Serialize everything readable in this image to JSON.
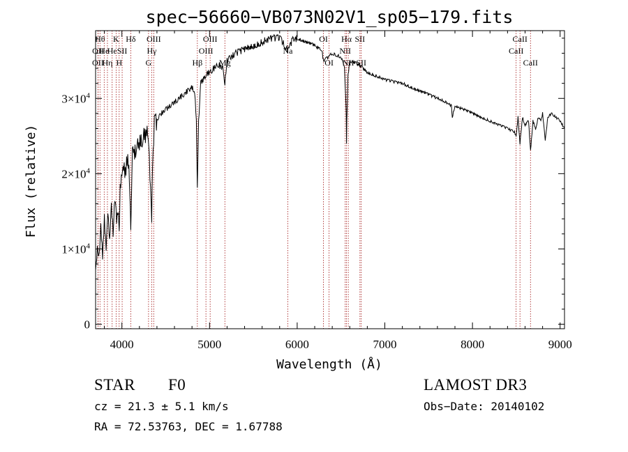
{
  "chart_data": {
    "type": "line",
    "title": "spec−56660−VB073N02V1_sp05−179.fits",
    "xlabel": "Wavelength (Å)",
    "ylabel": "Flux (relative)",
    "xlim": [
      3700,
      9050
    ],
    "ylim": [
      -600,
      39000
    ],
    "x_ticks": [
      {
        "value": 4000,
        "label": "4000"
      },
      {
        "value": 5000,
        "label": "5000"
      },
      {
        "value": 6000,
        "label": "6000"
      },
      {
        "value": 7000,
        "label": "7000"
      },
      {
        "value": 8000,
        "label": "8000"
      },
      {
        "value": 9000,
        "label": "9000"
      }
    ],
    "y_ticks": [
      {
        "value": 0,
        "label": "0"
      },
      {
        "value": 10000,
        "label": "1×10",
        "exp": "4"
      },
      {
        "value": 20000,
        "label": "2×10",
        "exp": "4"
      },
      {
        "value": 30000,
        "label": "3×10",
        "exp": "4"
      }
    ],
    "series": [
      {
        "name": "spectrum",
        "x": [
          3700,
          3720,
          3740,
          3760,
          3780,
          3800,
          3820,
          3840,
          3860,
          3880,
          3900,
          3920,
          3940,
          3960,
          3970,
          3980,
          4000,
          4020,
          4040,
          4060,
          4080,
          4101,
          4120,
          4150,
          4200,
          4250,
          4300,
          4320,
          4340,
          4350,
          4370,
          4400,
          4450,
          4500,
          4550,
          4600,
          4650,
          4700,
          4750,
          4800,
          4830,
          4850,
          4861,
          4875,
          4900,
          4950,
          5000,
          5050,
          5100,
          5150,
          5175,
          5200,
          5250,
          5300,
          5400,
          5500,
          5600,
          5700,
          5800,
          5890,
          5950,
          6000,
          6100,
          6200,
          6280,
          6300,
          6360,
          6400,
          6500,
          6540,
          6560,
          6563,
          6566,
          6580,
          6600,
          6650,
          6700,
          6750,
          6800,
          6900,
          7000,
          7100,
          7200,
          7300,
          7400,
          7500,
          7600,
          7700,
          7760,
          7770,
          7800,
          7900,
          8000,
          8100,
          8200,
          8300,
          8400,
          8480,
          8498,
          8520,
          8542,
          8570,
          8600,
          8640,
          8662,
          8690,
          8720,
          8750,
          8780,
          8800,
          8830,
          8860,
          8900,
          8950,
          9000,
          9050
        ],
        "y": [
          7000,
          10000,
          9000,
          13000,
          9000,
          14000,
          10000,
          15000,
          11000,
          16000,
          12000,
          17000,
          14000,
          15000,
          12000,
          18000,
          20000,
          21000,
          20000,
          22000,
          21000,
          13000,
          22500,
          23000,
          24000,
          25000,
          25500,
          20000,
          14000,
          21000,
          26500,
          27000,
          28000,
          28500,
          29000,
          29500,
          30000,
          30500,
          31000,
          31500,
          31000,
          27000,
          18000,
          27000,
          32000,
          33000,
          33500,
          34000,
          34500,
          34000,
          32000,
          35000,
          35500,
          36000,
          36500,
          37000,
          37500,
          38000,
          38000,
          36500,
          37800,
          38000,
          37500,
          37000,
          36500,
          35000,
          35500,
          36000,
          35500,
          34000,
          28000,
          24000,
          27000,
          33000,
          35000,
          34800,
          34500,
          34000,
          33500,
          33000,
          32500,
          32200,
          32000,
          31500,
          31000,
          30500,
          30000,
          29500,
          29000,
          27500,
          29000,
          28500,
          28000,
          27500,
          27000,
          26500,
          26000,
          25500,
          25000,
          27500,
          24000,
          27500,
          26500,
          27000,
          23000,
          27000,
          26000,
          27500,
          27000,
          28000,
          24500,
          27500,
          28000,
          27500,
          27000,
          26000
        ]
      }
    ],
    "line_markers": [
      {
        "x": 3750,
        "label": "Hθ",
        "row": 0
      },
      {
        "x": 3728,
        "label": "OII",
        "row": 1
      },
      {
        "x": 3727,
        "label": "OII",
        "row": 2
      },
      {
        "x": 3798,
        "label": "He",
        "row": 1
      },
      {
        "x": 3835,
        "label": "Hη",
        "row": 2
      },
      {
        "x": 3889,
        "label": "He",
        "row": 1
      },
      {
        "x": 3934,
        "label": "K",
        "row": 0
      },
      {
        "x": 3969,
        "label": "H",
        "row": 2
      },
      {
        "x": 4003,
        "label": "SII",
        "row": 1
      },
      {
        "x": 4101,
        "label": "Hδ",
        "row": 0
      },
      {
        "x": 4304,
        "label": "G",
        "row": 2
      },
      {
        "x": 4341,
        "label": "Hγ",
        "row": 1
      },
      {
        "x": 4363,
        "label": "OIII",
        "row": 0
      },
      {
        "x": 4861,
        "label": "Hβ",
        "row": 2
      },
      {
        "x": 4959,
        "label": "OIII",
        "row": 1
      },
      {
        "x": 5007,
        "label": "OIII",
        "row": 0
      },
      {
        "x": 5175,
        "label": "Mg",
        "row": 2
      },
      {
        "x": 5893,
        "label": "Na",
        "row": 1
      },
      {
        "x": 6300,
        "label": "OI",
        "row": 0
      },
      {
        "x": 6364,
        "label": "OI",
        "row": 2
      },
      {
        "x": 6548,
        "label": "NII",
        "row": 1
      },
      {
        "x": 6563,
        "label": "Hα",
        "row": 0
      },
      {
        "x": 6583,
        "label": "NII",
        "row": 2
      },
      {
        "x": 6716,
        "label": "SII",
        "row": 0
      },
      {
        "x": 6731,
        "label": "SII",
        "row": 2
      },
      {
        "x": 8498,
        "label": "CaII",
        "row": 1
      },
      {
        "x": 8542,
        "label": "CaII",
        "row": 0
      },
      {
        "x": 8662,
        "label": "CaII",
        "row": 2
      }
    ]
  },
  "info": {
    "object_class": "STAR",
    "subclass": "F0",
    "survey": "LAMOST DR3",
    "cz": "cz = 21.3 ± 5.1 km/s",
    "obs_date": "Obs−Date: 20140102",
    "coords": "RA =  72.53763, DEC =    1.67788"
  }
}
